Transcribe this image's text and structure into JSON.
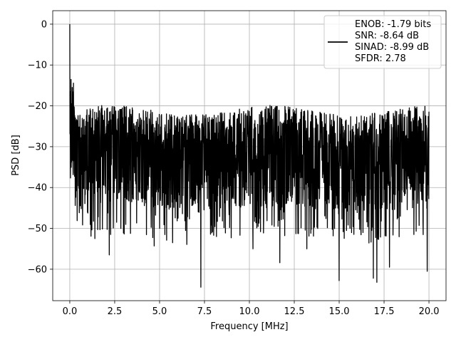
{
  "chart_data": {
    "type": "line",
    "title": "",
    "xlabel": "Frequency [MHz]",
    "ylabel": "PSD [dB]",
    "xlim": [
      -0.95,
      20.95
    ],
    "ylim": [
      -67.7,
      3.3
    ],
    "xticks": [
      0.0,
      2.5,
      5.0,
      7.5,
      10.0,
      12.5,
      15.0,
      17.5,
      20.0
    ],
    "xtick_labels": [
      "0.0",
      "2.5",
      "5.0",
      "7.5",
      "10.0",
      "12.5",
      "15.0",
      "17.5",
      "20.0"
    ],
    "yticks": [
      0,
      -10,
      -20,
      -30,
      -40,
      -50,
      -60
    ],
    "ytick_labels": [
      "0",
      "−10",
      "−20",
      "−30",
      "−40",
      "−50",
      "−60"
    ],
    "grid": true,
    "legend_position": "top-right",
    "line_color": "#000000",
    "series": [
      {
        "name": "ENOB: -1.79 bits\nSNR: -8.64 dB\nSINAD: -8.99 dB\nSFDR: 2.78",
        "legend_lines": [
          "ENOB: -1.79 bits",
          "SNR: -8.64 dB",
          "SINAD: -8.99 dB",
          "SFDR: 2.78"
        ],
        "x_range": [
          0.0,
          20.0
        ],
        "num_points": 2048,
        "noise_floor_mean": -32,
        "peak_value": 0.0,
        "deep_nulls": [
          {
            "x": 1.4,
            "y": -52.5
          },
          {
            "x": 2.2,
            "y": -56.5
          },
          {
            "x": 4.7,
            "y": -54.3
          },
          {
            "x": 7.3,
            "y": -64.4
          },
          {
            "x": 10.2,
            "y": -55.0
          },
          {
            "x": 11.7,
            "y": -58.4
          },
          {
            "x": 13.2,
            "y": -55.0
          },
          {
            "x": 15.0,
            "y": -62.8
          },
          {
            "x": 16.9,
            "y": -62.2
          },
          {
            "x": 17.1,
            "y": -63.2
          },
          {
            "x": 17.8,
            "y": -59.5
          },
          {
            "x": 19.9,
            "y": -60.5
          }
        ]
      }
    ]
  }
}
